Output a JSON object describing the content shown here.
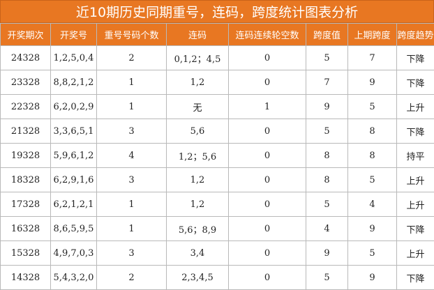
{
  "title": "近10期历史同期重号，连码，跨度统计图表分析",
  "columns": [
    "开奖期次",
    "开奖号",
    "重号号码个数",
    "连码",
    "连码连续轮空数",
    "跨度值",
    "上期跨度",
    "跨度趋势"
  ],
  "rows": [
    {
      "issue": "24328",
      "numbers": "1,2,5,0,4",
      "repeat": "2",
      "consecutive": "0,1,2；4,5",
      "gap": "0",
      "span": "5",
      "prev_span": "7",
      "trend": "下降"
    },
    {
      "issue": "23328",
      "numbers": "8,8,2,1,2",
      "repeat": "1",
      "consecutive": "1,2",
      "gap": "0",
      "span": "7",
      "prev_span": "9",
      "trend": "下降"
    },
    {
      "issue": "22328",
      "numbers": "6,2,0,2,9",
      "repeat": "1",
      "consecutive": "无",
      "gap": "1",
      "span": "9",
      "prev_span": "5",
      "trend": "上升"
    },
    {
      "issue": "21328",
      "numbers": "3,3,6,5,1",
      "repeat": "3",
      "consecutive": "5,6",
      "gap": "0",
      "span": "5",
      "prev_span": "8",
      "trend": "下降"
    },
    {
      "issue": "19328",
      "numbers": "5,9,6,1,2",
      "repeat": "4",
      "consecutive": "1,2；5,6",
      "gap": "0",
      "span": "8",
      "prev_span": "8",
      "trend": "持平"
    },
    {
      "issue": "18328",
      "numbers": "6,2,9,1,6",
      "repeat": "3",
      "consecutive": "1,2",
      "gap": "0",
      "span": "8",
      "prev_span": "5",
      "trend": "上升"
    },
    {
      "issue": "17328",
      "numbers": "6,2,1,2,1",
      "repeat": "1",
      "consecutive": "1,2",
      "gap": "0",
      "span": "5",
      "prev_span": "4",
      "trend": "上升"
    },
    {
      "issue": "16328",
      "numbers": "8,6,5,9,5",
      "repeat": "1",
      "consecutive": "5,6；8,9",
      "gap": "0",
      "span": "4",
      "prev_span": "9",
      "trend": "下降"
    },
    {
      "issue": "15328",
      "numbers": "4,9,7,0,3",
      "repeat": "3",
      "consecutive": "3,4",
      "gap": "0",
      "span": "9",
      "prev_span": "5",
      "trend": "上升"
    },
    {
      "issue": "14328",
      "numbers": "5,4,3,2,0",
      "repeat": "2",
      "consecutive": "2,3,4,5",
      "gap": "0",
      "span": "5",
      "prev_span": "9",
      "trend": "下降"
    }
  ],
  "colors": {
    "header": "#e87722",
    "repeat_levels": {
      "1": "#ffffff",
      "2": "#a9c6e3",
      "3": "#8e5ab0",
      "4": "#4d0a45"
    },
    "span_levels": {
      "4": "#ffffff",
      "5": "#cfe0ef",
      "7": "#8c6ec4",
      "8": "#8e3fa0",
      "9": "#4d0a45"
    },
    "gap_nonzero": "#4d0a45"
  }
}
